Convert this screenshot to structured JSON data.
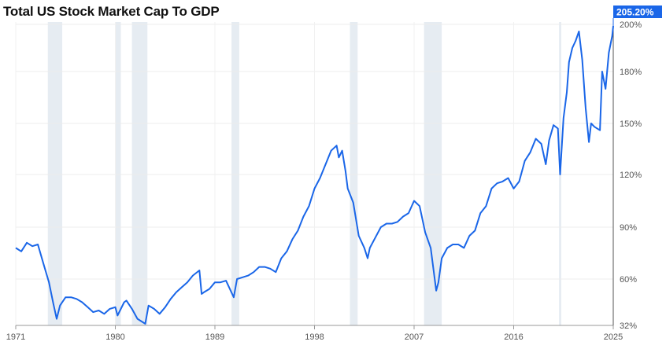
{
  "chart_data": {
    "type": "line",
    "title": "Total US Stock Market Cap To GDP",
    "xlabel": "",
    "ylabel": "",
    "xlim": [
      1971,
      2025
    ],
    "x_ticks": [
      "1971",
      "1980",
      "1989",
      "1998",
      "2007",
      "2016",
      "2025"
    ],
    "y_ticks": [
      "32%",
      "60%",
      "90%",
      "120%",
      "150%",
      "180%",
      "200%"
    ],
    "grid": true,
    "line_color": "#1a66e8",
    "recession_color": "#e6ecf2",
    "recessions": [
      [
        1973.9,
        1975.2
      ],
      [
        1980.0,
        1980.5
      ],
      [
        1981.5,
        1982.9
      ],
      [
        1990.5,
        1991.2
      ],
      [
        2001.2,
        2001.9
      ],
      [
        2007.9,
        2009.5
      ],
      [
        2020.1,
        2020.3
      ]
    ],
    "last_value_label": "205.20%",
    "series": [
      {
        "x": [
          1971,
          1971.5,
          1972,
          1972.5,
          1973,
          1973.5,
          1974,
          1974.4,
          1974.7,
          1975,
          1975.5,
          1976,
          1976.5,
          1977,
          1977.5,
          1978,
          1978.5,
          1979,
          1979.5,
          1980,
          1980.2,
          1980.8,
          1981,
          1981.5,
          1982,
          1982.7,
          1983,
          1983.5,
          1984,
          1984.5,
          1985,
          1985.5,
          1986,
          1986.5,
          1987,
          1987.6,
          1987.8,
          1988,
          1988.5,
          1989,
          1989.5,
          1990,
          1990.7,
          1991,
          1991.5,
          1992,
          1992.5,
          1993,
          1993.5,
          1994,
          1994.5,
          1995,
          1995.5,
          1996,
          1996.5,
          1997,
          1997.5,
          1998,
          1998.5,
          1999,
          1999.5,
          2000,
          2000.2,
          2000.5,
          2000.8,
          2001,
          2001.5,
          2002,
          2002.5,
          2002.8,
          2003,
          2003.5,
          2004,
          2004.5,
          2005,
          2005.5,
          2006,
          2006.5,
          2007,
          2007.5,
          2008,
          2008.5,
          2009,
          2009.2,
          2009.5,
          2010,
          2010.5,
          2011,
          2011.5,
          2012,
          2012.5,
          2013,
          2013.5,
          2014,
          2014.5,
          2015,
          2015.5,
          2016,
          2016.5,
          2017,
          2017.5,
          2018,
          2018.5,
          2018.9,
          2019.2,
          2019.6,
          2020.0,
          2020.2,
          2020.5,
          2020.8,
          2021,
          2021.3,
          2021.6,
          2021.9,
          2022.2,
          2022.5,
          2022.8,
          2023,
          2023.3,
          2023.8,
          2024,
          2024.3,
          2024.6,
          2024.9,
          2025
        ],
        "y": [
          78,
          76,
          81,
          79,
          80,
          69,
          58,
          45,
          36,
          44,
          49,
          49,
          48,
          46,
          43,
          40,
          41,
          39,
          42,
          43,
          38,
          46,
          47,
          42,
          36,
          33,
          44,
          42,
          39,
          43,
          48,
          52,
          55,
          58,
          62,
          65,
          51,
          52,
          54,
          58,
          58,
          59,
          49,
          60,
          61,
          62,
          64,
          67,
          67,
          66,
          64,
          72,
          76,
          83,
          88,
          96,
          102,
          112,
          118,
          126,
          134,
          137,
          130,
          134,
          122,
          112,
          104,
          85,
          78,
          72,
          78,
          84,
          90,
          92,
          92,
          93,
          96,
          98,
          105,
          102,
          87,
          78,
          53,
          58,
          72,
          78,
          80,
          80,
          78,
          85,
          88,
          98,
          102,
          112,
          115,
          116,
          118,
          112,
          116,
          128,
          133,
          141,
          138,
          126,
          140,
          149,
          147,
          120,
          153,
          168,
          184,
          190,
          193,
          197,
          185,
          159,
          139,
          150,
          148,
          146,
          180,
          170,
          188,
          195,
          205.2
        ]
      }
    ]
  }
}
